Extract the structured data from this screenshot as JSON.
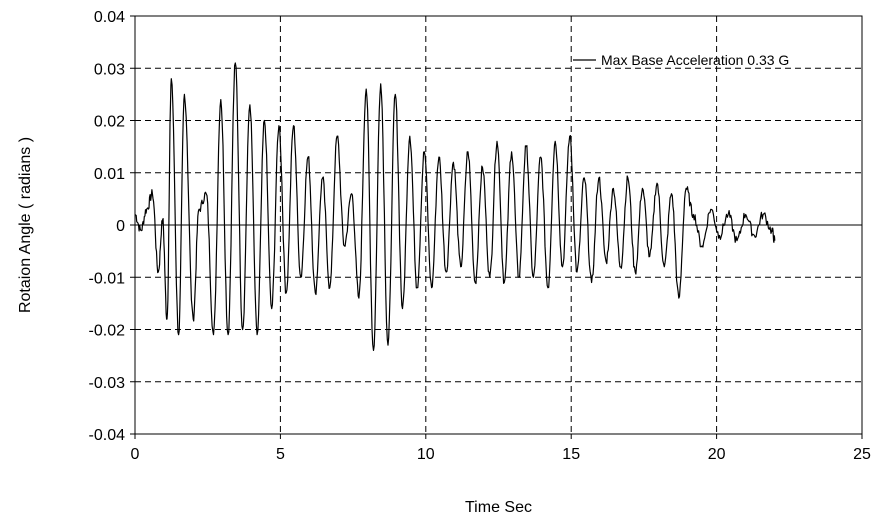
{
  "chart_data": {
    "type": "line",
    "title": "",
    "xlabel": "Time Sec",
    "ylabel": "Rotaion Angle  ( radians )",
    "xlim": [
      0,
      25
    ],
    "ylim": [
      -0.04,
      0.04
    ],
    "x_ticks": [
      0,
      5,
      10,
      15,
      20,
      25
    ],
    "x_tick_labels": [
      "0",
      "5",
      "10",
      "15",
      "20",
      "25"
    ],
    "y_ticks": [
      0.04,
      0.03,
      0.02,
      0.01,
      0,
      -0.01,
      -0.02,
      -0.03,
      -0.04
    ],
    "y_tick_labels": [
      "0.04",
      "0.03",
      "0.02",
      "0.01",
      "0",
      "-0.01",
      "-0.02",
      "-0.03",
      "-0.04"
    ],
    "grid": "dashed",
    "legend_position": "top-right",
    "colors": {
      "line": "#000000",
      "grid": "#000000",
      "background": "#ffffff"
    },
    "series": [
      {
        "name": "Max Base Acceleration 0.33 G",
        "x": [
          0,
          0.2,
          0.4,
          0.6,
          0.8,
          0.95,
          1.1,
          1.25,
          1.5,
          1.7,
          2.0,
          2.2,
          2.45,
          2.7,
          2.95,
          3.2,
          3.45,
          3.7,
          3.95,
          4.2,
          4.45,
          4.7,
          4.95,
          5.2,
          5.45,
          5.7,
          5.95,
          6.2,
          6.45,
          6.7,
          6.95,
          7.2,
          7.45,
          7.7,
          7.95,
          8.2,
          8.45,
          8.7,
          8.95,
          9.2,
          9.45,
          9.7,
          9.95,
          10.2,
          10.45,
          10.7,
          10.95,
          11.2,
          11.45,
          11.7,
          11.95,
          12.2,
          12.45,
          12.7,
          12.95,
          13.2,
          13.45,
          13.7,
          13.95,
          14.2,
          14.45,
          14.7,
          14.95,
          15.2,
          15.45,
          15.7,
          15.95,
          16.2,
          16.45,
          16.7,
          16.95,
          17.2,
          17.45,
          17.7,
          17.95,
          18.2,
          18.45,
          18.7,
          18.95,
          19.2,
          19.5,
          19.8,
          20.1,
          20.4,
          20.7,
          21.0,
          21.3,
          21.6,
          21.9,
          22.0
        ],
        "y": [
          0.002,
          -0.001,
          0.003,
          0.006,
          -0.009,
          0.001,
          -0.018,
          0.028,
          -0.021,
          0.025,
          -0.018,
          0.003,
          0.006,
          -0.021,
          0.024,
          -0.021,
          0.031,
          -0.02,
          0.023,
          -0.021,
          0.02,
          -0.016,
          0.019,
          -0.013,
          0.019,
          -0.01,
          0.013,
          -0.013,
          0.009,
          -0.012,
          0.017,
          -0.004,
          0.006,
          -0.014,
          0.026,
          -0.024,
          0.027,
          -0.023,
          0.025,
          -0.016,
          0.017,
          -0.012,
          0.014,
          -0.012,
          0.013,
          -0.009,
          0.012,
          -0.008,
          0.014,
          -0.011,
          0.011,
          -0.01,
          0.016,
          -0.011,
          0.014,
          -0.01,
          0.015,
          -0.01,
          0.013,
          -0.012,
          0.016,
          -0.008,
          0.017,
          -0.009,
          0.009,
          -0.011,
          0.009,
          -0.007,
          0.007,
          -0.008,
          0.009,
          -0.009,
          0.007,
          -0.006,
          0.008,
          -0.008,
          0.006,
          -0.014,
          0.007,
          0.002,
          -0.004,
          0.003,
          -0.002,
          0.002,
          -0.003,
          0.002,
          -0.002,
          0.002,
          -0.001,
          -0.003
        ]
      }
    ]
  }
}
